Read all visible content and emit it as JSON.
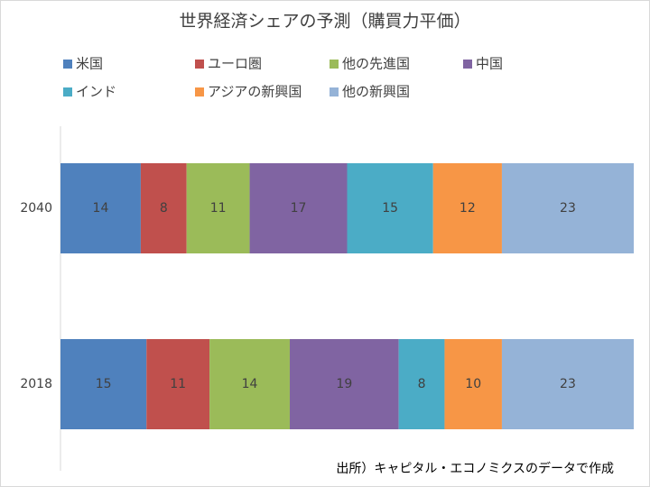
{
  "chart_data": {
    "type": "stacked-bar-horizontal",
    "title": "世界経済シェアの予測（購買力平価）",
    "categories": [
      "2040",
      "2018"
    ],
    "series": [
      {
        "name": "米国",
        "color": "#4f81bd",
        "values": [
          14,
          15
        ]
      },
      {
        "name": "ユーロ圏",
        "color": "#c0504d",
        "values": [
          8,
          11
        ]
      },
      {
        "name": "他の先進国",
        "color": "#9bbb59",
        "values": [
          11,
          14
        ]
      },
      {
        "name": "中国",
        "color": "#8064a2",
        "values": [
          17,
          19
        ]
      },
      {
        "name": "インド",
        "color": "#4bacc6",
        "values": [
          15,
          8
        ]
      },
      {
        "name": "アジアの新興国",
        "color": "#f79646",
        "values": [
          12,
          10
        ]
      },
      {
        "name": "他の新興国",
        "color": "#95b3d7",
        "values": [
          23,
          23
        ]
      }
    ],
    "xlim": [
      0,
      100
    ],
    "legend": "top",
    "source": "出所）キャピタル・エコノミクスのデータで作成"
  }
}
